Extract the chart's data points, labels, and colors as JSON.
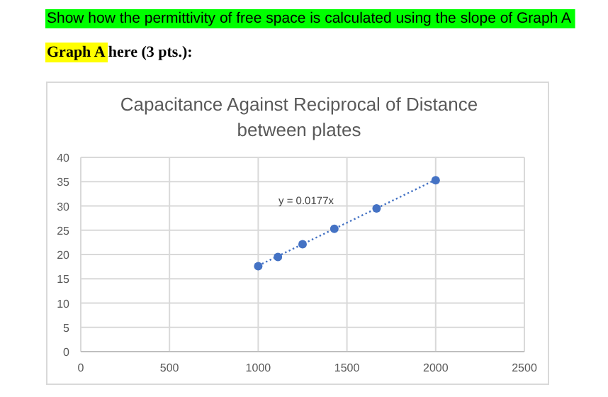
{
  "chart_data": {
    "type": "scatter",
    "title": "Capacitance Against Reciprocal of Distance between plates",
    "xlim": [
      0,
      2500
    ],
    "xticks": [
      0,
      500,
      1000,
      1500,
      2000,
      2500
    ],
    "ylim": [
      0,
      40
    ],
    "yticks": [
      0,
      5,
      10,
      15,
      20,
      25,
      30,
      35,
      40
    ],
    "grid": true,
    "series": [
      {
        "color": "#4472c4",
        "marker": "circle",
        "x": [
          1000,
          1111,
          1250,
          1429,
          1667,
          2000
        ],
        "values": [
          17.6,
          19.5,
          22.1,
          25.3,
          29.5,
          35.3
        ]
      },
      {
        "type": "line",
        "color": "#4472c4",
        "marker": "none",
        "line_style": "dotted",
        "x": [
          1000,
          2000
        ],
        "values": [
          17.7,
          35.4
        ]
      }
    ],
    "annotations": [
      "Show how the permittivity of free space is calculated using the slope of Graph A",
      "Graph A here (3 pts.):",
      "y = 0.0177x"
    ]
  }
}
